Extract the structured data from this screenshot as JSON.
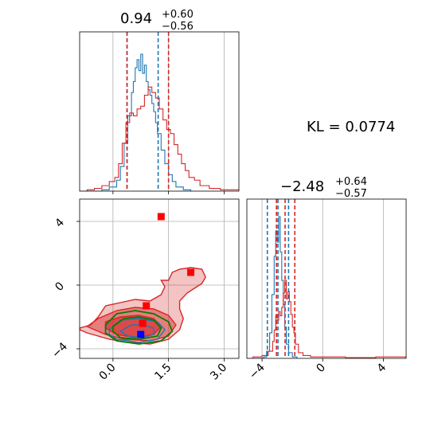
{
  "kl_label": "KL = 0.0774",
  "colors": {
    "red": "#d62728",
    "blue": "#1f77b4",
    "green": "#008000",
    "grid": "#b0b0b0"
  },
  "chart_data": [
    {
      "type": "histogram",
      "panel": "top-left",
      "title": {
        "value": "0.94",
        "plus": "+0.60",
        "minus": "−0.56"
      },
      "x_range": [
        -0.9,
        3.4
      ],
      "x_ticks": [
        0.0,
        1.5,
        3.0
      ],
      "x_tick_labels": [
        "0.0",
        "1.5",
        "3.0"
      ],
      "grid": true,
      "series": [
        {
          "color": "blue",
          "quantile_lines": [
            0.38,
            1.22
          ],
          "hist": [
            [
              -0.9,
              0
            ],
            [
              -0.3,
              0.01
            ],
            [
              -0.1,
              0.03
            ],
            [
              0.1,
              0.08
            ],
            [
              0.2,
              0.18
            ],
            [
              0.3,
              0.35
            ],
            [
              0.4,
              0.55
            ],
            [
              0.5,
              0.72
            ],
            [
              0.55,
              0.8
            ],
            [
              0.6,
              0.9
            ],
            [
              0.65,
              0.96
            ],
            [
              0.7,
              0.88
            ],
            [
              0.75,
              1.0
            ],
            [
              0.8,
              0.86
            ],
            [
              0.85,
              0.92
            ],
            [
              0.9,
              0.8
            ],
            [
              0.95,
              0.74
            ],
            [
              1.0,
              0.7
            ],
            [
              1.05,
              0.64
            ],
            [
              1.1,
              0.58
            ],
            [
              1.15,
              0.5
            ],
            [
              1.2,
              0.42
            ],
            [
              1.3,
              0.3
            ],
            [
              1.4,
              0.2
            ],
            [
              1.5,
              0.12
            ],
            [
              1.6,
              0.07
            ],
            [
              1.7,
              0.03
            ],
            [
              1.9,
              0.01
            ],
            [
              2.1,
              0
            ]
          ]
        },
        {
          "color": "red",
          "quantile_lines": [
            0.38,
            1.5
          ],
          "hist": [
            [
              -0.9,
              0
            ],
            [
              -0.7,
              0.01
            ],
            [
              -0.5,
              0.02
            ],
            [
              -0.3,
              0.04
            ],
            [
              -0.1,
              0.07
            ],
            [
              0.05,
              0.1
            ],
            [
              0.15,
              0.2
            ],
            [
              0.25,
              0.35
            ],
            [
              0.35,
              0.5
            ],
            [
              0.45,
              0.57
            ],
            [
              0.55,
              0.55
            ],
            [
              0.65,
              0.6
            ],
            [
              0.75,
              0.62
            ],
            [
              0.85,
              0.7
            ],
            [
              0.95,
              0.76
            ],
            [
              1.05,
              0.72
            ],
            [
              1.15,
              0.68
            ],
            [
              1.25,
              0.6
            ],
            [
              1.35,
              0.52
            ],
            [
              1.45,
              0.45
            ],
            [
              1.55,
              0.42
            ],
            [
              1.65,
              0.34
            ],
            [
              1.75,
              0.27
            ],
            [
              1.85,
              0.2
            ],
            [
              1.95,
              0.15
            ],
            [
              2.05,
              0.1
            ],
            [
              2.2,
              0.08
            ],
            [
              2.35,
              0.04
            ],
            [
              2.6,
              0.02
            ],
            [
              2.9,
              0.01
            ],
            [
              3.1,
              0.01
            ],
            [
              3.4,
              0.01
            ]
          ]
        }
      ]
    },
    {
      "type": "contour",
      "panel": "bottom-left",
      "x_range": [
        -0.9,
        3.4
      ],
      "y_range": [
        -4.6,
        5.4
      ],
      "x_ticks": [
        0.0,
        1.5,
        3.0
      ],
      "x_tick_labels": [
        "0.0",
        "1.5",
        "3.0"
      ],
      "y_ticks": [
        -4,
        0,
        4
      ],
      "y_tick_labels": [
        "−4",
        "0",
        "4"
      ],
      "grid": true,
      "red_points": [
        [
          1.3,
          4.3
        ],
        [
          2.1,
          0.8
        ],
        [
          0.9,
          -1.3
        ],
        [
          0.8,
          -2.4
        ]
      ],
      "blue_points": [
        [
          0.75,
          -3.1
        ]
      ],
      "red_fill_outer": [
        [
          -0.9,
          -2.7
        ],
        [
          -0.6,
          -2.5
        ],
        [
          -0.4,
          -2.0
        ],
        [
          -0.2,
          -1.3
        ],
        [
          0.2,
          -1.1
        ],
        [
          0.6,
          -0.9
        ],
        [
          1.0,
          -1.0
        ],
        [
          1.3,
          -0.6
        ],
        [
          1.4,
          -0.1
        ],
        [
          1.3,
          0.3
        ],
        [
          1.5,
          0.3
        ],
        [
          1.6,
          0.8
        ],
        [
          1.8,
          1.0
        ],
        [
          2.1,
          1.1
        ],
        [
          2.4,
          1.0
        ],
        [
          2.5,
          0.5
        ],
        [
          2.4,
          0.1
        ],
        [
          2.2,
          -0.2
        ],
        [
          2.0,
          -0.5
        ],
        [
          1.8,
          -1.0
        ],
        [
          1.8,
          -1.5
        ],
        [
          1.9,
          -2.1
        ],
        [
          1.8,
          -2.8
        ],
        [
          1.5,
          -3.4
        ],
        [
          1.0,
          -3.7
        ],
        [
          0.4,
          -3.6
        ],
        [
          -0.1,
          -3.4
        ],
        [
          -0.4,
          -3.2
        ],
        [
          -0.7,
          -3.0
        ],
        [
          -0.9,
          -2.8
        ]
      ],
      "red_fill_mid": [
        [
          -0.7,
          -2.6
        ],
        [
          -0.4,
          -2.1
        ],
        [
          0.1,
          -1.6
        ],
        [
          0.6,
          -1.4
        ],
        [
          1.1,
          -1.5
        ],
        [
          1.5,
          -1.9
        ],
        [
          1.7,
          -2.5
        ],
        [
          1.5,
          -3.2
        ],
        [
          1.0,
          -3.5
        ],
        [
          0.3,
          -3.4
        ],
        [
          -0.2,
          -3.1
        ],
        [
          -0.5,
          -2.8
        ]
      ],
      "red_fill_inner": [
        [
          -0.2,
          -2.3
        ],
        [
          0.2,
          -2.0
        ],
        [
          0.7,
          -1.9
        ],
        [
          1.1,
          -2.1
        ],
        [
          1.3,
          -2.6
        ],
        [
          1.1,
          -3.1
        ],
        [
          0.6,
          -3.3
        ],
        [
          0.1,
          -3.1
        ],
        [
          -0.2,
          -2.7
        ]
      ],
      "green_contours": [
        [
          [
            -0.2,
            -2.5
          ],
          [
            0.1,
            -1.8
          ],
          [
            0.6,
            -1.6
          ],
          [
            1.1,
            -1.8
          ],
          [
            1.5,
            -2.3
          ],
          [
            1.6,
            -2.9
          ],
          [
            1.3,
            -3.5
          ],
          [
            0.7,
            -3.7
          ],
          [
            0.1,
            -3.5
          ],
          [
            -0.2,
            -3.0
          ]
        ],
        [
          [
            0.0,
            -2.6
          ],
          [
            0.3,
            -2.1
          ],
          [
            0.7,
            -2.0
          ],
          [
            1.1,
            -2.2
          ],
          [
            1.3,
            -2.7
          ],
          [
            1.2,
            -3.2
          ],
          [
            0.7,
            -3.4
          ],
          [
            0.2,
            -3.3
          ],
          [
            0.0,
            -2.9
          ]
        ]
      ],
      "blue_contours": [
        [
          [
            -0.1,
            -2.8
          ],
          [
            0.2,
            -2.2
          ],
          [
            0.7,
            -2.1
          ],
          [
            1.2,
            -2.3
          ],
          [
            1.4,
            -2.8
          ],
          [
            1.2,
            -3.4
          ],
          [
            0.7,
            -3.6
          ],
          [
            0.1,
            -3.4
          ],
          [
            -0.1,
            -3.1
          ]
        ],
        [
          [
            0.2,
            -2.9
          ],
          [
            0.5,
            -2.5
          ],
          [
            0.8,
            -2.5
          ],
          [
            1.1,
            -2.7
          ],
          [
            1.1,
            -3.1
          ],
          [
            0.8,
            -3.3
          ],
          [
            0.4,
            -3.2
          ]
        ]
      ]
    },
    {
      "type": "histogram",
      "panel": "bottom-right",
      "title": {
        "value": "−2.48",
        "plus": "+0.64",
        "minus": "−0.57"
      },
      "x_range": [
        -5.0,
        5.5
      ],
      "x_ticks": [
        -4,
        0,
        4
      ],
      "x_tick_labels": [
        "−4",
        "0",
        "4"
      ],
      "grid": true,
      "series": [
        {
          "color": "blue",
          "quantile_lines": [
            -3.65,
            -2.95,
            -2.25
          ],
          "hist": [
            [
              -5.0,
              0
            ],
            [
              -4.2,
              0
            ],
            [
              -3.9,
              0.01
            ],
            [
              -3.7,
              0.05
            ],
            [
              -3.5,
              0.18
            ],
            [
              -3.35,
              0.45
            ],
            [
              -3.2,
              0.72
            ],
            [
              -3.1,
              0.9
            ],
            [
              -3.0,
              0.82
            ],
            [
              -2.9,
              1.0
            ],
            [
              -2.8,
              0.75
            ],
            [
              -2.7,
              0.55
            ],
            [
              -2.6,
              0.38
            ],
            [
              -2.5,
              0.22
            ],
            [
              -2.4,
              0.1
            ],
            [
              -2.25,
              0.04
            ],
            [
              -2.0,
              0.01
            ],
            [
              -1.7,
              0
            ]
          ]
        },
        {
          "color": "red",
          "quantile_lines": [
            -3.05,
            -2.48,
            -1.84
          ],
          "hist": [
            [
              -5.0,
              0
            ],
            [
              -4.6,
              0.01
            ],
            [
              -4.0,
              0.02
            ],
            [
              -3.6,
              0.05
            ],
            [
              -3.3,
              0.12
            ],
            [
              -3.2,
              0.2
            ],
            [
              -3.1,
              0.3
            ],
            [
              -3.0,
              0.27
            ],
            [
              -2.9,
              0.33
            ],
            [
              -2.8,
              0.3
            ],
            [
              -2.7,
              0.36
            ],
            [
              -2.6,
              0.46
            ],
            [
              -2.5,
              0.55
            ],
            [
              -2.4,
              0.42
            ],
            [
              -2.3,
              0.47
            ],
            [
              -2.2,
              0.4
            ],
            [
              -2.1,
              0.31
            ],
            [
              -2.0,
              0.22
            ],
            [
              -1.9,
              0.18
            ],
            [
              -1.8,
              0.1
            ],
            [
              -1.6,
              0.04
            ],
            [
              -1.3,
              0.02
            ],
            [
              -0.8,
              0.01
            ],
            [
              0.5,
              0.01
            ],
            [
              1.5,
              0.005
            ],
            [
              3.5,
              0.01
            ],
            [
              4.8,
              0.01
            ],
            [
              5.5,
              0
            ]
          ]
        }
      ]
    }
  ]
}
